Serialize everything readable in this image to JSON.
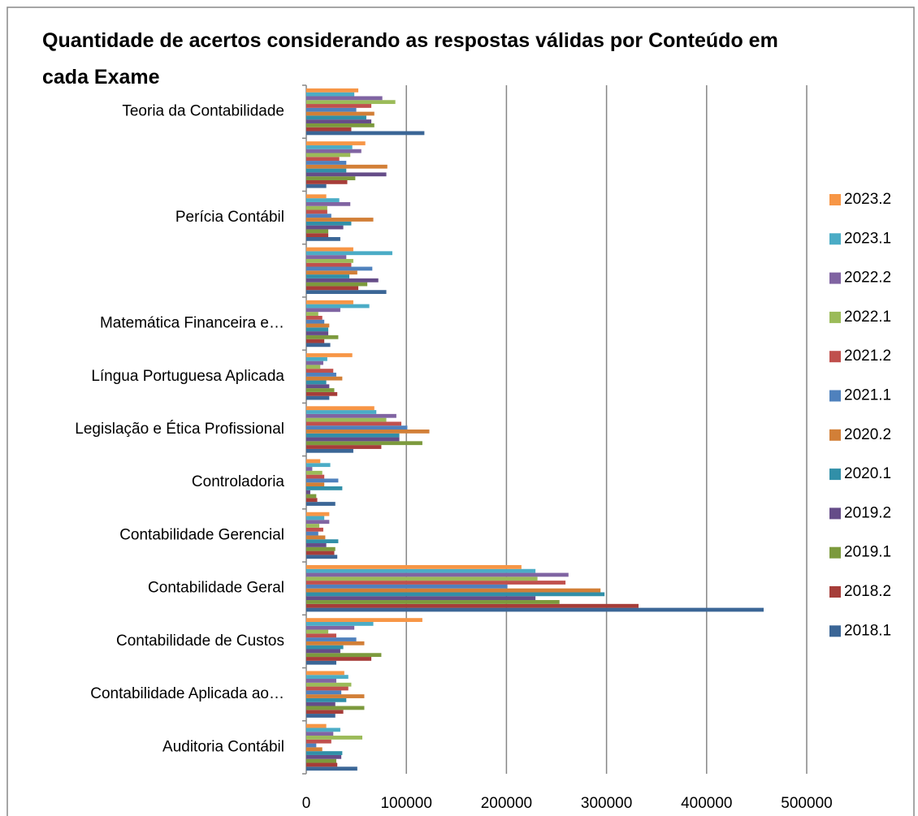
{
  "chart_data": {
    "type": "bar",
    "orientation": "horizontal",
    "title": "Quantidade de acertos considerando as respostas válidas por Conteúdo em cada Exame",
    "categories": [
      "Auditoria Contábil",
      "Contabilidade Aplicada ao…",
      "Contabilidade de Custos",
      "Contabilidade Geral",
      "Contabilidade Gerencial",
      "Controladoria",
      "Legislação e Ética Profissional",
      "Língua Portuguesa Aplicada",
      "Matemática Financeira e…",
      null,
      "Perícia Contábil",
      null,
      "Teoria da Contabilidade"
    ],
    "series": [
      {
        "name": "2018.1",
        "color": "#3b6696",
        "values": [
          51000,
          29000,
          30000,
          457000,
          31000,
          29000,
          47000,
          23000,
          24000,
          80000,
          34000,
          20000,
          118000
        ]
      },
      {
        "name": "2018.2",
        "color": "#a63d39",
        "values": [
          31000,
          37000,
          65000,
          332000,
          28000,
          11000,
          75000,
          31000,
          18000,
          52000,
          22000,
          41000,
          45000
        ]
      },
      {
        "name": "2019.1",
        "color": "#7c9a3d",
        "values": [
          30000,
          58000,
          75000,
          253000,
          29000,
          10000,
          116000,
          28000,
          32000,
          61000,
          22000,
          49000,
          68000
        ]
      },
      {
        "name": "2019.2",
        "color": "#654c88",
        "values": [
          35000,
          29000,
          34000,
          229000,
          20000,
          4000,
          93000,
          23000,
          22000,
          72000,
          37000,
          80000,
          65000
        ]
      },
      {
        "name": "2020.1",
        "color": "#318fa8",
        "values": [
          36000,
          40000,
          37000,
          298000,
          32000,
          36000,
          93000,
          20000,
          22000,
          43000,
          45000,
          40000,
          60000
        ]
      },
      {
        "name": "2020.2",
        "color": "#d27f37",
        "values": [
          16000,
          58000,
          58000,
          294000,
          19000,
          18000,
          123000,
          36000,
          23000,
          51000,
          67000,
          81000,
          68000
        ]
      },
      {
        "name": "2021.1",
        "color": "#4f81bd",
        "values": [
          10000,
          35000,
          50000,
          201000,
          12000,
          32000,
          101000,
          30000,
          18000,
          66000,
          25000,
          40000,
          50000
        ]
      },
      {
        "name": "2021.2",
        "color": "#c0504d",
        "values": [
          25000,
          42000,
          30000,
          259000,
          17000,
          18000,
          95000,
          27000,
          16000,
          45000,
          21000,
          33000,
          65000
        ]
      },
      {
        "name": "2022.1",
        "color": "#9bbb59",
        "values": [
          56000,
          45000,
          22000,
          231000,
          13000,
          16000,
          80000,
          14000,
          12000,
          47000,
          21000,
          44000,
          89000
        ]
      },
      {
        "name": "2022.2",
        "color": "#8064a2",
        "values": [
          27000,
          30000,
          48000,
          262000,
          23000,
          6000,
          90000,
          17000,
          34000,
          40000,
          44000,
          55000,
          76000
        ]
      },
      {
        "name": "2023.1",
        "color": "#4bacc6",
        "values": [
          34000,
          42000,
          67000,
          229000,
          18000,
          24000,
          70000,
          21000,
          63000,
          86000,
          33000,
          46000,
          48000
        ]
      },
      {
        "name": "2023.2",
        "color": "#f79646",
        "values": [
          20000,
          38000,
          116000,
          215000,
          23000,
          14000,
          68000,
          46000,
          47000,
          47000,
          20000,
          59000,
          52000
        ]
      }
    ],
    "xlim": [
      0,
      500000
    ],
    "xticks": [
      0,
      100000,
      200000,
      300000,
      400000,
      500000
    ],
    "grid": true,
    "legend": "right"
  }
}
